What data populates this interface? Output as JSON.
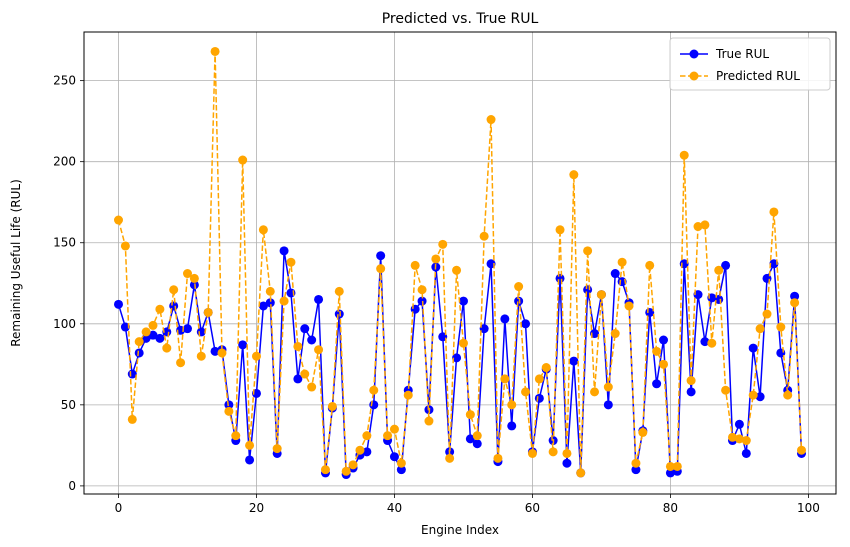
{
  "chart_data": {
    "type": "line",
    "title": "Predicted vs. True RUL",
    "xlabel": "Engine Index",
    "ylabel": "Remaining Useful Life (RUL)",
    "xlim": [
      -5,
      104
    ],
    "ylim": [
      -5,
      280
    ],
    "xticks": [
      0,
      20,
      40,
      60,
      80,
      100
    ],
    "yticks": [
      0,
      50,
      100,
      150,
      200,
      250
    ],
    "grid": true,
    "legend_position": "top-right",
    "series": [
      {
        "name": "True RUL",
        "color": "#0000ff",
        "style": "solid",
        "values": [
          112,
          98,
          69,
          82,
          91,
          93,
          91,
          95,
          111,
          96,
          97,
          124,
          95,
          107,
          83,
          84,
          50,
          28,
          87,
          16,
          57,
          111,
          113,
          20,
          145,
          119,
          66,
          97,
          90,
          115,
          8,
          48,
          106,
          7,
          11,
          19,
          21,
          50,
          142,
          28,
          18,
          10,
          59,
          109,
          114,
          47,
          135,
          92,
          21,
          79,
          114,
          29,
          26,
          97,
          137,
          15,
          103,
          37,
          114,
          100,
          21,
          54,
          72,
          28,
          128,
          14,
          77,
          8,
          121,
          94,
          118,
          50,
          131,
          126,
          113,
          10,
          34,
          107,
          63,
          90,
          8,
          9,
          137,
          58,
          118,
          89,
          116,
          115,
          136,
          28,
          38,
          20,
          85,
          55,
          128,
          137,
          82,
          59,
          117,
          20
        ]
      },
      {
        "name": "Predicted RUL",
        "color": "#ffa500",
        "style": "dashed",
        "values": [
          164,
          148,
          41,
          89,
          95,
          99,
          109,
          85,
          121,
          76,
          131,
          128,
          80,
          107,
          268,
          82,
          46,
          31,
          201,
          25,
          80,
          158,
          120,
          23,
          114,
          138,
          86,
          69,
          61,
          84,
          10,
          49,
          120,
          9,
          13,
          22,
          31,
          59,
          134,
          31,
          35,
          14,
          56,
          136,
          121,
          40,
          140,
          149,
          17,
          133,
          88,
          44,
          31,
          154,
          226,
          17,
          66,
          50,
          123,
          58,
          20,
          66,
          73,
          21,
          158,
          20,
          192,
          8,
          145,
          58,
          118,
          61,
          94,
          138,
          111,
          14,
          33,
          136,
          83,
          75,
          12,
          12,
          204,
          65,
          160,
          161,
          88,
          133,
          59,
          30,
          29,
          28,
          56,
          97,
          106,
          169,
          98,
          56,
          113,
          22
        ]
      }
    ]
  }
}
